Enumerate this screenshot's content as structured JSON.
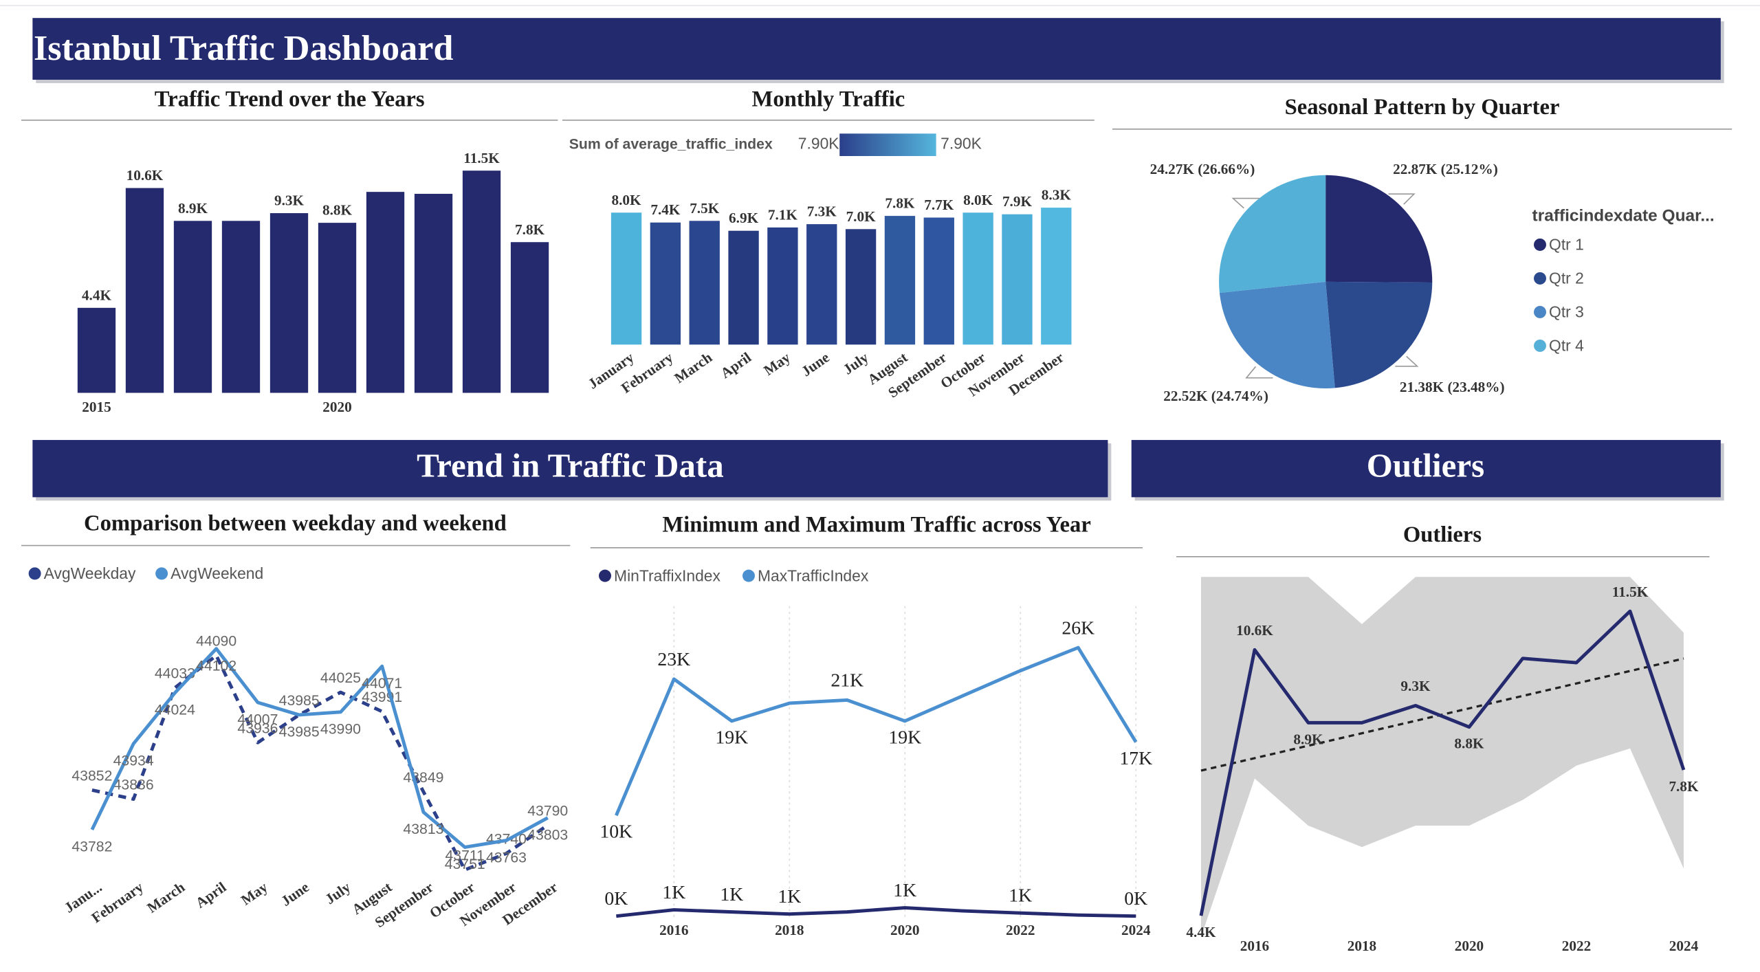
{
  "header": {
    "title": "Istanbul Traffic Dashboard"
  },
  "sections": [
    {
      "title": "Trend in Traffic Data"
    },
    {
      "title": "Outliers"
    }
  ],
  "chart_data": [
    {
      "type": "bar",
      "title": "Traffic Trend over the Years",
      "categories": [
        "2015",
        null,
        null,
        null,
        null,
        "2020",
        null,
        null,
        null,
        null
      ],
      "values": [
        4.4,
        10.6,
        8.9,
        8.9,
        9.3,
        8.8,
        10.4,
        10.3,
        11.5,
        7.8
      ],
      "value_labels": [
        "4.4K",
        "10.6K",
        "8.9K",
        null,
        "9.3K",
        "8.8K",
        null,
        null,
        "11.5K",
        "7.8K"
      ],
      "color": "#252a6e"
    },
    {
      "type": "bar",
      "title": "Monthly Traffic",
      "legend_title": "Sum of average_traffic_index",
      "legend_labels": [
        "7.90K",
        "7.90K"
      ],
      "legend_colors": [
        "#2b3f8a",
        "#55b6dc"
      ],
      "categories": [
        "January",
        "February",
        "March",
        "April",
        "May",
        "June",
        "July",
        "August",
        "September",
        "October",
        "November",
        "December"
      ],
      "values": [
        8.0,
        7.4,
        7.5,
        6.9,
        7.1,
        7.3,
        7.0,
        7.8,
        7.7,
        8.0,
        7.9,
        8.3
      ],
      "value_labels": [
        "8.0K",
        "7.4K",
        "7.5K",
        "6.9K",
        "7.1K",
        "7.3K",
        "7.0K",
        "7.8K",
        "7.7K",
        "8.0K",
        "7.9K",
        "8.3K"
      ],
      "colors": [
        "#4db3da",
        "#2c4a92",
        "#2a468e",
        "#263a80",
        "#28408a",
        "#2a448d",
        "#263a80",
        "#2f5aa0",
        "#2f56a0",
        "#4db3da",
        "#4aaed8",
        "#52b8df"
      ]
    },
    {
      "type": "pie",
      "title": "Seasonal Pattern by Quarter",
      "legend_title": "trafficindexdate Quar...",
      "categories": [
        "Qtr 1",
        "Qtr 2",
        "Qtr 3",
        "Qtr 4"
      ],
      "values": [
        22.87,
        21.38,
        22.52,
        24.27
      ],
      "value_labels": [
        "22.87K (25.12%)",
        "21.38K (23.48%)",
        "22.52K (24.74%)",
        "24.27K (26.66%)"
      ],
      "colors": [
        "#252a6e",
        "#2b4a8e",
        "#4a86c5",
        "#55b0d8"
      ]
    },
    {
      "type": "line",
      "title": "Comparison between weekday and weekend",
      "categories": [
        "Janu...",
        "February",
        "March",
        "April",
        "May",
        "June",
        "July",
        "August",
        "September",
        "October",
        "November",
        "December"
      ],
      "series": [
        {
          "name": "AvgWeekday",
          "color": "#2b3f8a",
          "dash": true,
          "values": [
            43852,
            43836,
            44033,
            44090,
            43936,
            43985,
            44025,
            43991,
            43849,
            43711,
            43740,
            43790
          ]
        },
        {
          "name": "AvgWeekend",
          "color": "#4a8fd0",
          "values": [
            43782,
            43934,
            44024,
            44102,
            44007,
            43985,
            43990,
            44071,
            43813,
            43751,
            43763,
            43803
          ]
        }
      ]
    },
    {
      "type": "line",
      "title": "Minimum and Maximum Traffic across Year",
      "x": [
        2015,
        2016,
        2017,
        2018,
        2019,
        2020,
        2021,
        2022,
        2023,
        2024
      ],
      "xlim": [
        2015,
        2024
      ],
      "xticks": [
        2016,
        2018,
        2020,
        2022,
        2024
      ],
      "grid": true,
      "series": [
        {
          "name": "MinTraffixIndex",
          "color": "#252a6e",
          "values": [
            0.4,
            1.0,
            0.8,
            0.6,
            0.8,
            1.2,
            0.9,
            0.7,
            0.5,
            0.4
          ],
          "value_labels": [
            "0K",
            "1K",
            "1K",
            "1K",
            null,
            "1K",
            null,
            "1K",
            null,
            "0K"
          ]
        },
        {
          "name": "MaxTrafficIndex",
          "color": "#4a8fd0",
          "values": [
            10,
            23,
            19,
            20.7,
            21,
            19,
            21.4,
            23.8,
            26,
            17
          ],
          "value_labels": [
            "10K",
            "23K",
            "19K",
            null,
            "21K",
            "19K",
            null,
            null,
            "26K",
            "17K"
          ]
        }
      ]
    },
    {
      "type": "line",
      "title": "Outliers",
      "x": [
        2015,
        2016,
        2017,
        2018,
        2019,
        2020,
        2021,
        2022,
        2023,
        2024
      ],
      "xlim": [
        2015,
        2024
      ],
      "xticks": [
        2016,
        2018,
        2020,
        2022,
        2024
      ],
      "trend": true,
      "band": {
        "color": "#d3d3d3",
        "upper": [
          12.3,
          12.3,
          12.3,
          11.2,
          12.3,
          12.3,
          12.3,
          12.3,
          12.3,
          11.0
        ],
        "lower": [
          3.9,
          7.6,
          6.5,
          6.0,
          6.5,
          6.5,
          7.1,
          7.9,
          8.3,
          5.5
        ]
      },
      "series": [
        {
          "color": "#252a6e",
          "values": [
            4.4,
            10.6,
            8.9,
            8.9,
            9.3,
            8.8,
            10.4,
            10.3,
            11.5,
            7.8
          ],
          "value_labels": [
            "4.4K",
            "10.6K",
            "8.9K",
            null,
            "9.3K",
            "8.8K",
            null,
            null,
            "11.5K",
            "7.8K"
          ]
        }
      ]
    }
  ]
}
